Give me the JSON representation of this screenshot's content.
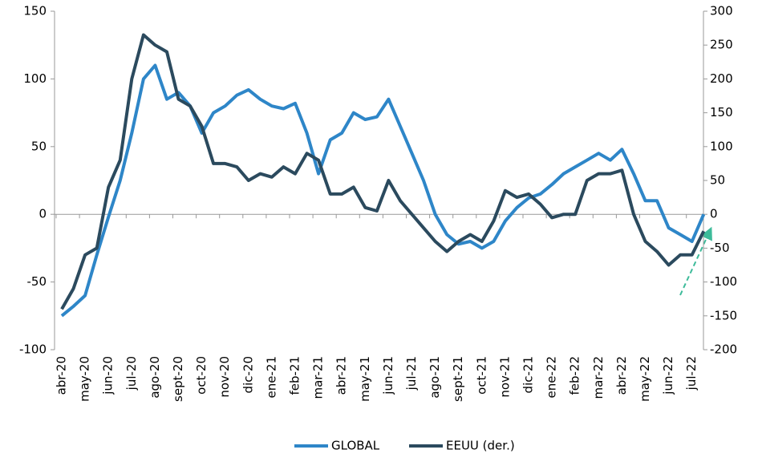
{
  "chart_data": {
    "type": "line",
    "categories": [
      "abr-20",
      null,
      "may-20",
      null,
      "jun-20",
      null,
      "jul-20",
      null,
      "ago-20",
      null,
      "sept-20",
      null,
      "oct-20",
      null,
      "nov-20",
      null,
      "dic-20",
      null,
      "ene-21",
      null,
      "feb-21",
      null,
      "mar-21",
      null,
      "abr-21",
      null,
      "may-21",
      null,
      "jun-21",
      null,
      "jul-21",
      null,
      "ago-21",
      null,
      "sept-21",
      null,
      "oct-21",
      null,
      "nov-21",
      null,
      "dic-21",
      null,
      "ene-22",
      null,
      "feb-22",
      null,
      "mar-22",
      null,
      "abr-22",
      null,
      "may-22",
      null,
      "jun-22",
      null,
      "jul-22",
      null
    ],
    "series": [
      {
        "name": "GLOBAL",
        "color": "#2e86c8",
        "values": [
          -75,
          -68,
          -60,
          -30,
          -2,
          25,
          60,
          100,
          110,
          85,
          90,
          80,
          60,
          75,
          80,
          88,
          92,
          85,
          80,
          78,
          82,
          60,
          30,
          55,
          60,
          75,
          70,
          72,
          85,
          65,
          45,
          25,
          0,
          -15,
          -22,
          -20,
          -25,
          -20,
          -5,
          5,
          12,
          15,
          22,
          30,
          35,
          40,
          45,
          40,
          48,
          30,
          10,
          10,
          -10,
          -15,
          -20,
          0
        ]
      },
      {
        "name": "EEUU (der.)",
        "color": "#2b4a5e",
        "axis": "y2",
        "values": [
          -140,
          -110,
          -60,
          -50,
          40,
          80,
          200,
          265,
          250,
          240,
          170,
          160,
          130,
          75,
          75,
          70,
          50,
          60,
          55,
          70,
          60,
          90,
          80,
          30,
          30,
          40,
          10,
          5,
          50,
          20,
          0,
          -20,
          -40,
          -55,
          -40,
          -30,
          -40,
          -10,
          35,
          25,
          30,
          15,
          -5,
          0,
          0,
          50,
          60,
          60,
          65,
          0,
          -40,
          -55,
          -75,
          -60,
          -60,
          -25
        ]
      }
    ],
    "ylim": [
      -100,
      150
    ],
    "yticks": [
      -100,
      -50,
      0,
      50,
      100,
      150
    ],
    "y2lim": [
      -200,
      300
    ],
    "y2ticks": [
      -200,
      -150,
      -100,
      -50,
      0,
      50,
      100,
      150,
      200,
      250,
      300
    ],
    "legend": "bottom"
  }
}
